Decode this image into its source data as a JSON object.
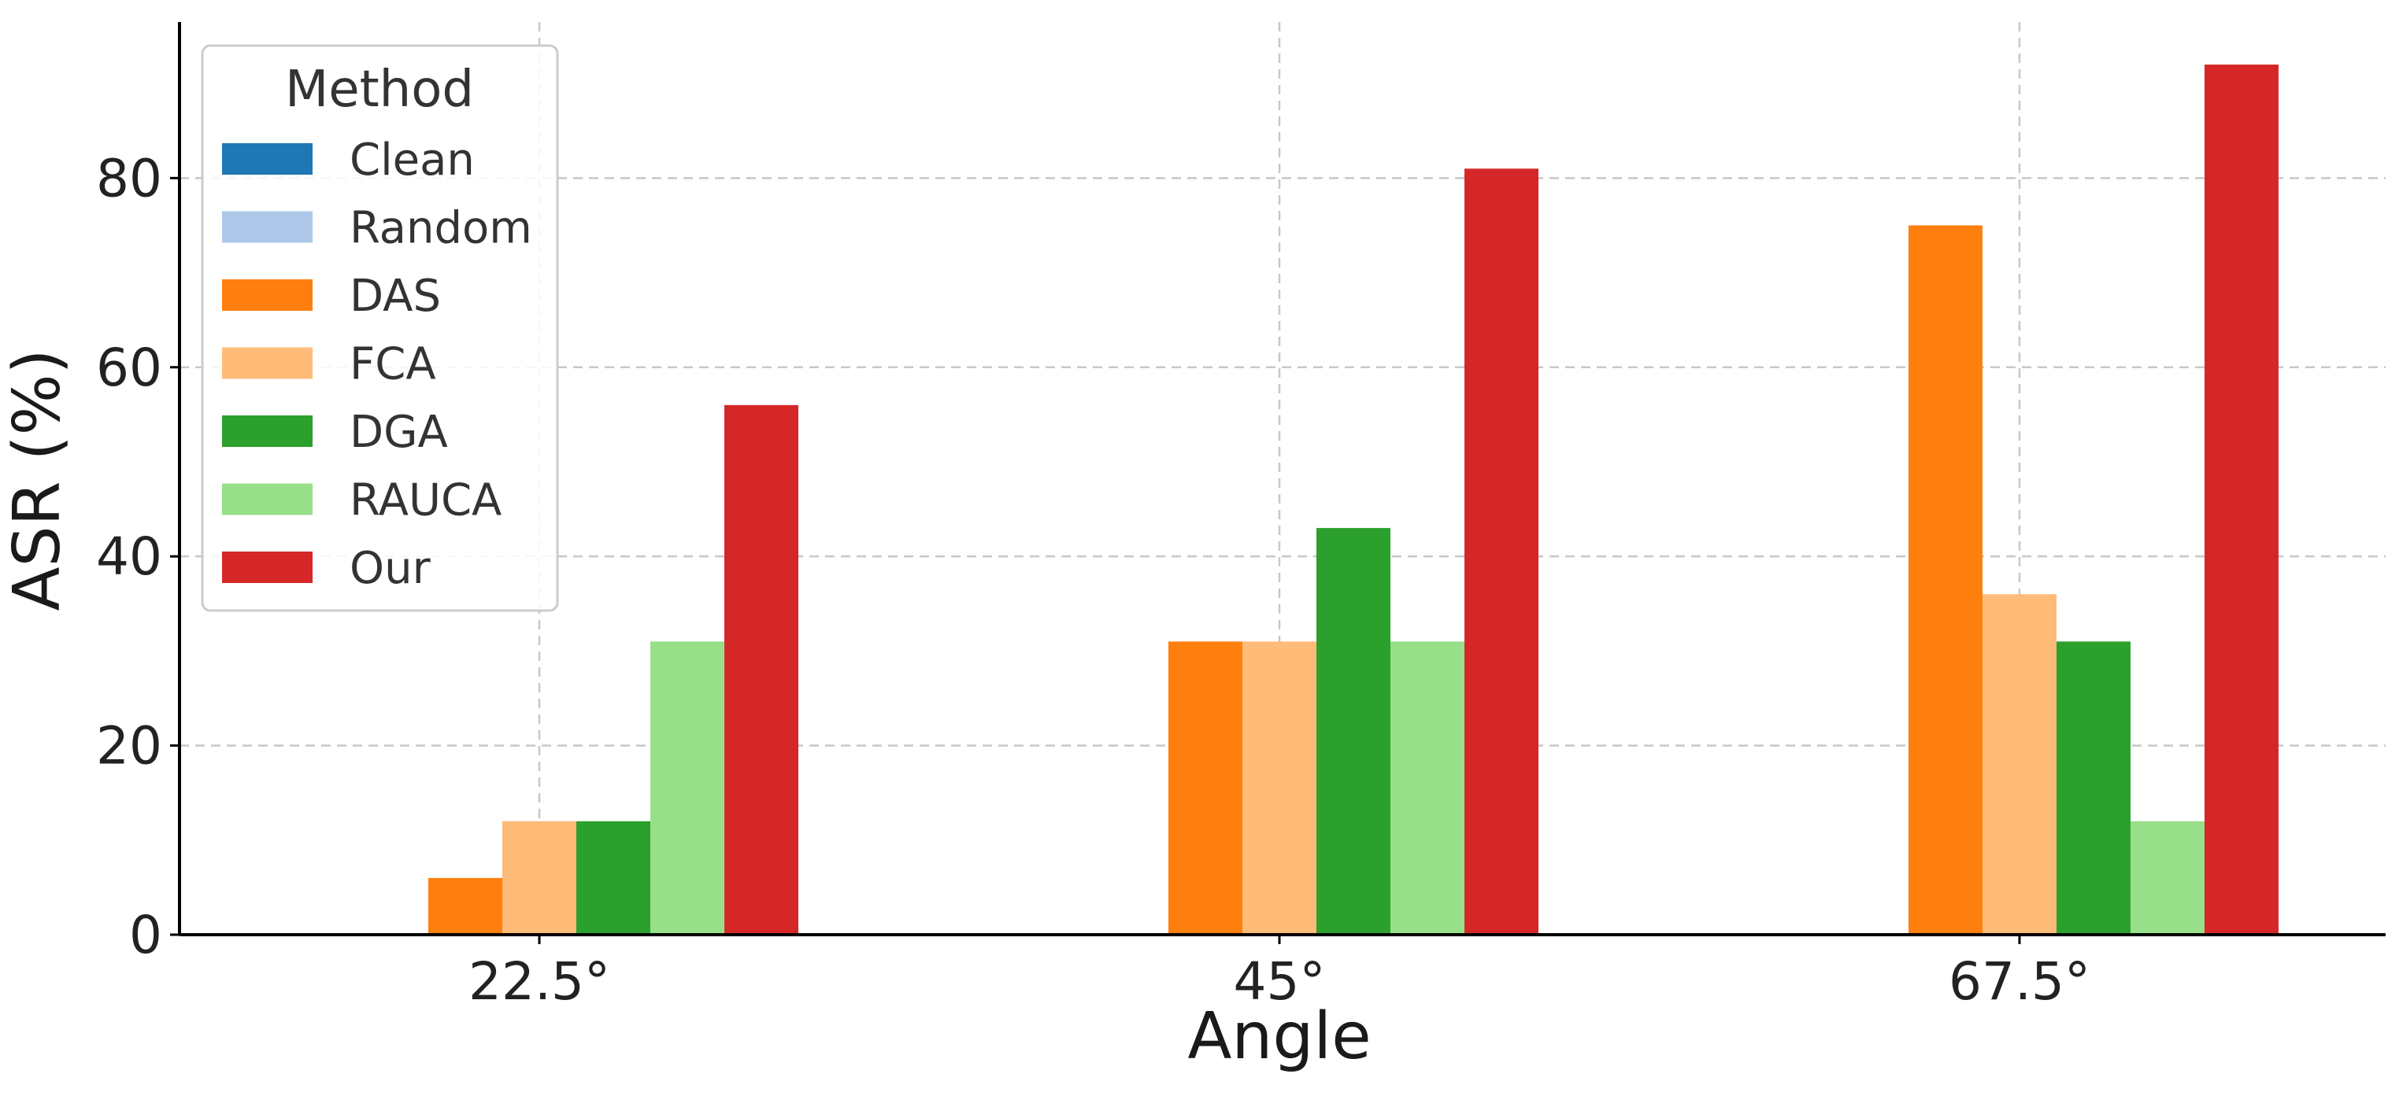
{
  "chart_data": {
    "type": "bar",
    "categories": [
      "22.5°",
      "45°",
      "67.5°"
    ],
    "series": [
      {
        "name": "Clean",
        "color": "#1f77b4",
        "values": [
          0,
          0,
          0
        ]
      },
      {
        "name": "Random",
        "color": "#aec7e8",
        "values": [
          0,
          0,
          0
        ]
      },
      {
        "name": "DAS",
        "color": "#ff7f0e",
        "values": [
          6,
          31,
          75
        ]
      },
      {
        "name": "FCA",
        "color": "#ffbb78",
        "values": [
          12,
          31,
          36
        ]
      },
      {
        "name": "DGA",
        "color": "#2ca02c",
        "values": [
          12,
          43,
          31
        ]
      },
      {
        "name": "RAUCA",
        "color": "#98df8a",
        "values": [
          31,
          31,
          12
        ]
      },
      {
        "name": "Our",
        "color": "#d62728",
        "values": [
          56,
          81,
          92
        ]
      }
    ],
    "xlabel": "Angle",
    "ylabel": "ASR (%)",
    "ylim": [
      0,
      96.5
    ],
    "yticks": [
      0,
      20,
      40,
      60,
      80
    ],
    "legend_title": "Method",
    "legend_position": "top-left",
    "grid": true
  }
}
